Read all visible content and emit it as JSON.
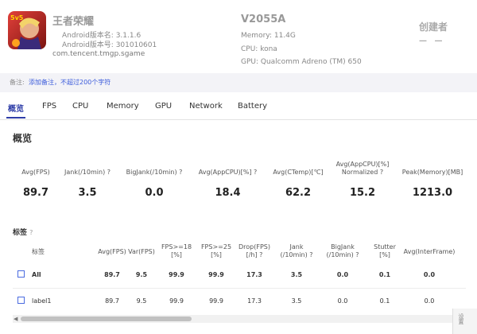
{
  "app": {
    "name": "王者荣耀",
    "version_name": "Android版本名: 3.1.1.6",
    "version_code": "Android版本号: 301010601",
    "package": "com.tencent.tmgp.sgame",
    "icon_badge": "5v5"
  },
  "device": {
    "model": "V2055A",
    "memory": "Memory: 11.4G",
    "cpu": "CPU: kona",
    "gpu": "GPU: Qualcomm Adreno (TM) 650"
  },
  "creator": {
    "label": "创建者",
    "value": "— —"
  },
  "note": {
    "label": "备注:",
    "link": "添加备注，不超过200个字符"
  },
  "tabs": [
    "概览",
    "FPS",
    "CPU",
    "Memory",
    "GPU",
    "Network",
    "Battery"
  ],
  "active_tab": "概览",
  "overview": {
    "title": "概览",
    "metrics": [
      {
        "label": "Avg(FPS)",
        "value": "89.7"
      },
      {
        "label": "Jank(/10min) ?",
        "value": "3.5"
      },
      {
        "label": "BigJank(/10min) ?",
        "value": "0.0"
      },
      {
        "label": "Avg(AppCPU)[%] ?",
        "value": "18.4"
      },
      {
        "label": "Avg(CTemp)[℃]",
        "value": "62.2"
      },
      {
        "label": "Avg(AppCPU)[%] Normalized ?",
        "value": "15.2"
      },
      {
        "label": "Peak(Memory)[MB]",
        "value": "1213.0"
      }
    ]
  },
  "tags": {
    "title": "标签",
    "help": "?",
    "columns": [
      "标签",
      "Avg(FPS)",
      "Var(FPS)",
      "FPS>=18 [%]",
      "FPS>=25 [%]",
      "Drop(FPS) [/h] ?",
      "Jank (/10min) ?",
      "BigJank (/10min) ?",
      "Stutter [%]",
      "Avg(InterFrame)"
    ],
    "rows": [
      {
        "label": "All",
        "values": [
          "89.7",
          "9.5",
          "99.9",
          "99.9",
          "17.3",
          "3.5",
          "0.0",
          "0.1",
          "0.0"
        ]
      },
      {
        "label": "label1",
        "values": [
          "89.7",
          "9.5",
          "99.9",
          "99.9",
          "17.3",
          "3.5",
          "0.0",
          "0.1",
          "0.0"
        ]
      }
    ]
  },
  "colors": {
    "accent": "#2f3ea8",
    "link": "#3b5bdb",
    "checkbox": "#4a6be0"
  },
  "scroll": {
    "left_arrow": "◀",
    "right_arrow": "▶",
    "panel_text": "设置"
  }
}
